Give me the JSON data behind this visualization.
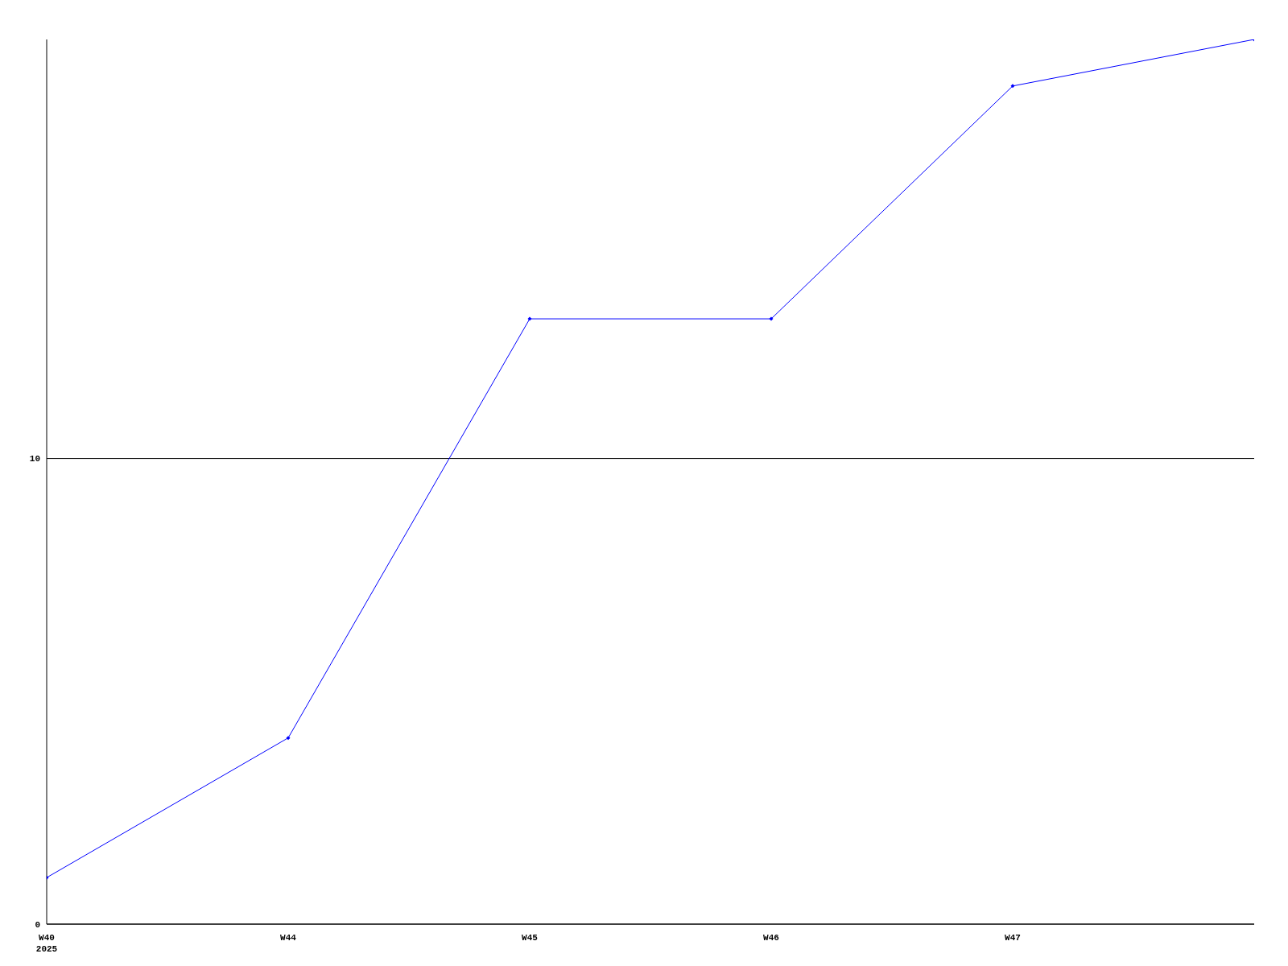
{
  "chart_data": {
    "type": "line",
    "categories": [
      "W40\n2025",
      "W44",
      "W45",
      "W46",
      "W47",
      null
    ],
    "series": [
      {
        "color": "#0000ff",
        "values": [
          1,
          4,
          13,
          13,
          18,
          19
        ]
      }
    ],
    "ylim": [
      0,
      19
    ],
    "yticks": [
      0,
      10
    ],
    "grid": "y",
    "marker": "diamond",
    "line_style": "solid"
  }
}
